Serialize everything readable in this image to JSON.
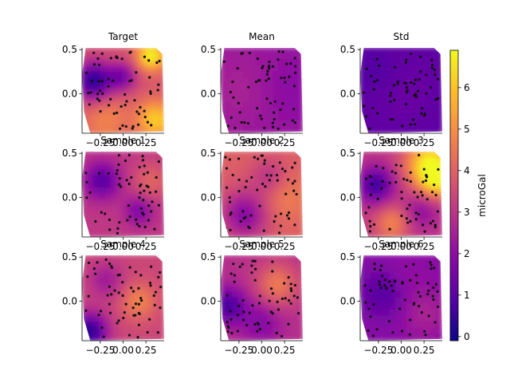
{
  "chart_data": {
    "type": "heatmap",
    "colorbar": {
      "label": "microGal",
      "ticks": [
        0,
        1,
        2,
        3,
        4,
        5,
        6
      ],
      "range": [
        -0.1,
        6.9
      ],
      "colormap": "plasma"
    },
    "xlim": [
      -0.45,
      0.45
    ],
    "ylim": [
      -0.45,
      0.52
    ],
    "xticks": [
      -0.25,
      0.0,
      0.25
    ],
    "yticks": [
      0.0,
      0.5
    ],
    "xtick_labels": [
      "−0.25",
      "0.00",
      "0.25"
    ],
    "ytick_labels": [
      "0.0",
      "0.5"
    ],
    "panels": [
      {
        "title": "Target"
      },
      {
        "title": "Mean"
      },
      {
        "title": "Std"
      },
      {
        "title": "Sample 1"
      },
      {
        "title": "Sample 2"
      },
      {
        "title": "Sample 3"
      },
      {
        "title": "Sample 4"
      },
      {
        "title": "Sample 5"
      },
      {
        "title": "Sample 6"
      }
    ]
  }
}
